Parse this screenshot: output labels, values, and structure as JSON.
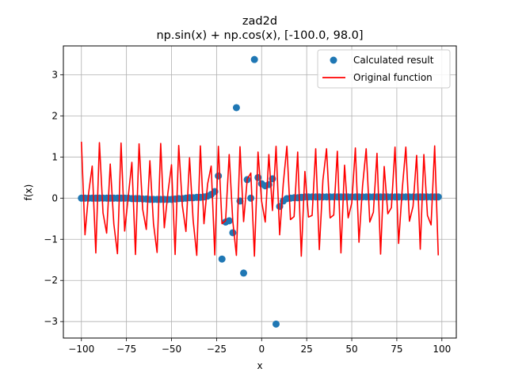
{
  "chart_data": {
    "type": "scatter",
    "title": "zad2d",
    "subtitle": "np.sin(x) + np.cos(x), [-100.0, 98.0]",
    "xlabel": "x",
    "ylabel": "f(x)",
    "xlim": [
      -110,
      108
    ],
    "ylim": [
      -3.4,
      3.7
    ],
    "xticks": [
      -100,
      -75,
      -50,
      -25,
      0,
      25,
      50,
      75,
      100
    ],
    "xtick_labels": [
      "−100",
      "−75",
      "−50",
      "−25",
      "0",
      "25",
      "50",
      "75",
      "100"
    ],
    "yticks": [
      -3,
      -2,
      -1,
      0,
      1,
      2,
      3
    ],
    "ytick_labels": [
      "−3",
      "−2",
      "−1",
      "0",
      "1",
      "2",
      "3"
    ],
    "grid": true,
    "legend_placement": "top-right",
    "series": [
      {
        "name": "Calculated result",
        "kind": "scatter",
        "color": "#1f77b4",
        "x": [
          -100,
          -98,
          -96,
          -94,
          -92,
          -90,
          -88,
          -86,
          -84,
          -82,
          -80,
          -78,
          -76,
          -74,
          -72,
          -70,
          -68,
          -66,
          -64,
          -62,
          -60,
          -58,
          -56,
          -54,
          -52,
          -50,
          -48,
          -46,
          -44,
          -42,
          -40,
          -38,
          -36,
          -34,
          -32,
          -30,
          -28,
          -26,
          -24,
          -22,
          -20,
          -18,
          -16,
          -14,
          -12,
          -10,
          -8,
          -6,
          -4,
          -2,
          0,
          2,
          4,
          6,
          8,
          10,
          12,
          14,
          16,
          18,
          20,
          22,
          24,
          26,
          28,
          30,
          32,
          34,
          36,
          38,
          40,
          42,
          44,
          46,
          48,
          50,
          52,
          54,
          56,
          58,
          60,
          62,
          64,
          66,
          68,
          70,
          72,
          74,
          76,
          78,
          80,
          82,
          84,
          86,
          88,
          90,
          92,
          94,
          96,
          98
        ],
        "y": [
          0,
          0,
          0,
          0,
          0,
          0,
          0,
          0,
          0,
          0,
          0,
          0,
          0,
          0,
          -0.01,
          -0.01,
          -0.01,
          -0.02,
          -0.02,
          -0.03,
          -0.03,
          -0.03,
          -0.03,
          -0.03,
          -0.03,
          -0.03,
          -0.02,
          -0.01,
          -0.01,
          0,
          0.01,
          0.01,
          0.02,
          0.02,
          0.03,
          0.05,
          0.09,
          0.16,
          0.54,
          -1.48,
          -0.58,
          -0.55,
          -0.84,
          2.2,
          -0.07,
          -1.82,
          0.45,
          0,
          3.37,
          0.5,
          0.35,
          0.3,
          0.33,
          0.47,
          -3.06,
          -0.2,
          -0.07,
          -0.01,
          0,
          0.01,
          0.01,
          0.02,
          0.03,
          0.03,
          0.03,
          0.03,
          0.03,
          0.03,
          0.03,
          0.03,
          0.03,
          0.03,
          0.03,
          0.03,
          0.03,
          0.03,
          0.03,
          0.03,
          0.03,
          0.03,
          0.03,
          0.03,
          0.03,
          0.03,
          0.03,
          0.03,
          0.03,
          0.03,
          0.03,
          0.03,
          0.03,
          0.03,
          0.03,
          0.03,
          0.03,
          0.03,
          0.03,
          0.03,
          0.03,
          0.03
        ]
      },
      {
        "name": "Original function",
        "kind": "line",
        "color": "#ff0000",
        "x": [
          -100,
          -98,
          -96,
          -94,
          -92,
          -90,
          -88,
          -86,
          -84,
          -82,
          -80,
          -78,
          -76,
          -74,
          -72,
          -70,
          -68,
          -66,
          -64,
          -62,
          -60,
          -58,
          -56,
          -54,
          -52,
          -50,
          -48,
          -46,
          -44,
          -42,
          -40,
          -38,
          -36,
          -34,
          -32,
          -30,
          -28,
          -26,
          -24,
          -22,
          -20,
          -18,
          -16,
          -14,
          -12,
          -10,
          -8,
          -6,
          -4,
          -2,
          0,
          2,
          4,
          6,
          8,
          10,
          12,
          14,
          16,
          18,
          20,
          22,
          24,
          26,
          28,
          30,
          32,
          34,
          36,
          38,
          40,
          42,
          44,
          46,
          48,
          50,
          52,
          54,
          56,
          58,
          60,
          62,
          64,
          66,
          68,
          70,
          72,
          74,
          76,
          78,
          80,
          82,
          84,
          86,
          88,
          90,
          92,
          94,
          96,
          98
        ],
        "y": [
          1.37,
          -0.89,
          0.12,
          0.78,
          -1.33,
          1.35,
          -0.36,
          -0.85,
          0.83,
          -0.63,
          -1.35,
          1.34,
          -0.8,
          0.04,
          0.87,
          -1.37,
          1.32,
          -0.27,
          -0.76,
          0.91,
          -0.62,
          -1.32,
          1.33,
          -0.72,
          0.13,
          0.81,
          -1.37,
          1.28,
          -0.18,
          -0.81,
          0.98,
          -0.54,
          -1.39,
          1.27,
          -0.62,
          0.34,
          0.78,
          -1.38,
          1.26,
          -0.62,
          -0.55,
          1.06,
          -0.56,
          -1.39,
          1.25,
          -0.57,
          0.46,
          0.61,
          -1.41,
          1.12,
          -0.08,
          -0.58,
          1.06,
          -0.3,
          1.26,
          -0.89,
          0.35,
          1.26,
          -0.52,
          -0.45,
          1.12,
          -1.41,
          0.65,
          -0.46,
          -0.42,
          1.2,
          -1.25,
          0.44,
          1.2,
          -0.48,
          -0.41,
          1.14,
          -1.33,
          0.8,
          -0.48,
          -0.12,
          1.22,
          -1.07,
          0.3,
          1.2,
          -0.58,
          -0.34,
          1.09,
          -1.36,
          0.77,
          -0.38,
          -0.23,
          1.24,
          -1.1,
          0.21,
          1.24,
          -0.56,
          -0.2,
          1.04,
          -1.24,
          1.06,
          -0.42,
          -0.65,
          1.27,
          -1.39
        ]
      }
    ]
  }
}
